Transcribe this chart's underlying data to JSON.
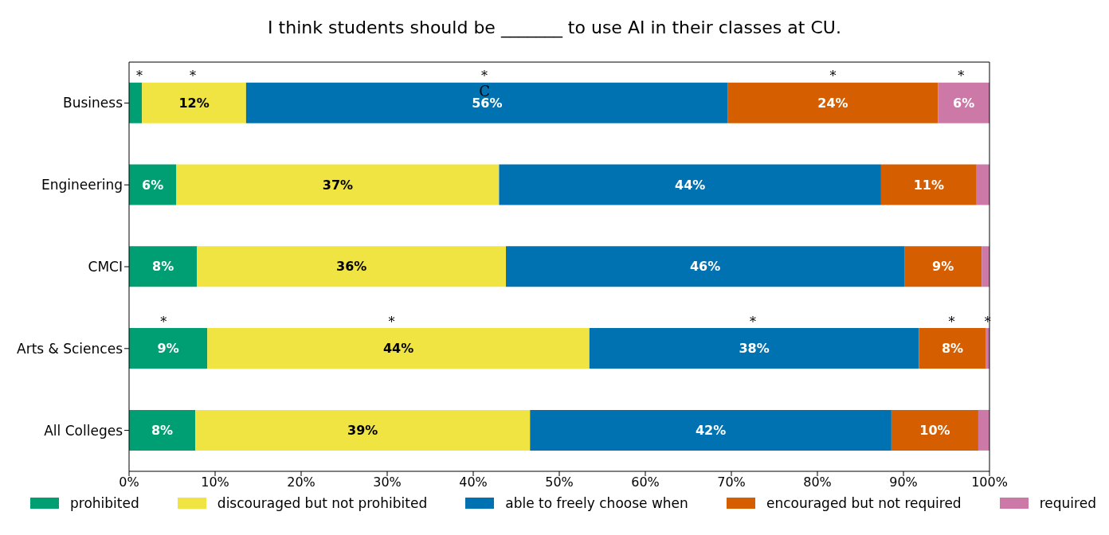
{
  "chart_data": {
    "type": "bar",
    "orientation": "horizontal",
    "stacked": true,
    "title": "I think students should be _______ to use AI in their classes at CU.",
    "categories": [
      "Business",
      "Engineering",
      "CMCI",
      "Arts & Sciences",
      "All Colleges"
    ],
    "series": [
      {
        "name": "prohibited",
        "color": "#009e73",
        "values": [
          1.5,
          5.5,
          7.9,
          9.1,
          7.7
        ],
        "value_labels": [
          null,
          "6%",
          "8%",
          "9%",
          "8%"
        ]
      },
      {
        "name": "discouraged but not prohibited",
        "color": "#f0e442",
        "values": [
          12.1,
          37.5,
          35.9,
          44.4,
          38.9
        ],
        "value_labels": [
          "12%",
          "37%",
          "36%",
          "44%",
          "39%"
        ]
      },
      {
        "name": "able to freely choose when",
        "color": "#0072b2",
        "values": [
          56,
          44.4,
          46.3,
          38.3,
          42
        ],
        "value_labels": [
          "56%",
          "44%",
          "46%",
          "38%",
          "42%"
        ]
      },
      {
        "name": "encouraged but not required",
        "color": "#d55e00",
        "values": [
          24.4,
          11.1,
          9,
          7.8,
          10.1
        ],
        "value_labels": [
          "24%",
          "11%",
          "9%",
          "8%",
          "10%"
        ]
      },
      {
        "name": "required",
        "color": "#cc79a7",
        "values": [
          6,
          1.5,
          0.9,
          0.4,
          1.3
        ],
        "value_labels": [
          "6%",
          null,
          null,
          null,
          null
        ]
      }
    ],
    "xlim": [
      0,
      100
    ],
    "xticks": [
      {
        "value": 0,
        "label": "0%"
      },
      {
        "value": 10,
        "label": "10%"
      },
      {
        "value": 20,
        "label": "20%"
      },
      {
        "value": 30,
        "label": "30%"
      },
      {
        "value": 40,
        "label": "40%"
      },
      {
        "value": 50,
        "label": "50%"
      },
      {
        "value": 60,
        "label": "60%"
      },
      {
        "value": 70,
        "label": "70%"
      },
      {
        "value": 80,
        "label": "80%"
      },
      {
        "value": 90,
        "label": "90%"
      },
      {
        "value": 100,
        "label": "100%"
      }
    ],
    "grid": false,
    "legend": "bottom",
    "annotations": [
      "*",
      "*",
      "*",
      "*",
      "*",
      "C",
      "*",
      "*",
      "*",
      "*",
      "*"
    ]
  }
}
